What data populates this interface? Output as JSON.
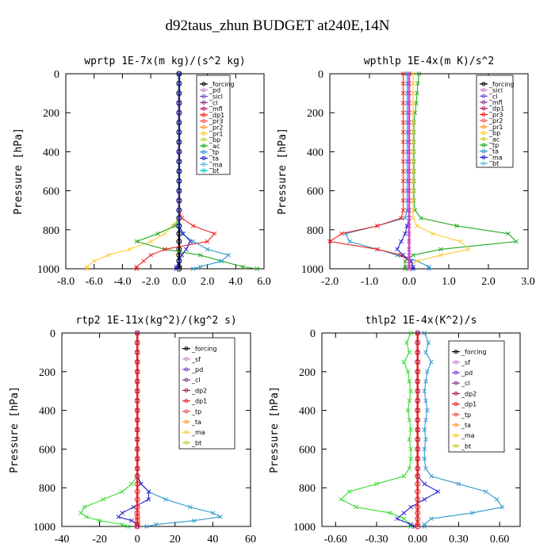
{
  "figure_title": "d92taus_zhun  BUDGET at240E,14N",
  "chart_data": [
    {
      "type": "line",
      "title": "wprtp  1E-7x(m kg)/(s^2 kg)",
      "ylabel": "Pressure [hPa]",
      "xlim": [
        -8.0,
        6.0
      ],
      "ylim": [
        1000,
        0
      ],
      "xticks": [
        "-8.0",
        "-6.0",
        "-4.0",
        "-2.0",
        "0.0",
        "2.0",
        "4.0",
        "6.0"
      ],
      "yticks": [
        "0",
        "200",
        "400",
        "600",
        "800",
        "1000"
      ],
      "y": [
        0,
        50,
        100,
        150,
        200,
        250,
        300,
        350,
        400,
        450,
        500,
        550,
        600,
        650,
        700,
        740,
        780,
        820,
        860,
        900,
        930,
        960,
        990,
        1000
      ],
      "legend": [
        "_forcing",
        "_pd",
        "_sicl",
        "_cl",
        "_mfl",
        "_dp1",
        "_pr3",
        "_pr2",
        "_pr1",
        "_bp",
        "_ac",
        "_tp",
        "_ta",
        "_ma",
        "_bt"
      ],
      "series": [
        {
          "name": "_forcing",
          "color": "#000000",
          "marker": "circle",
          "values": [
            0,
            0,
            0,
            0,
            0,
            0,
            0,
            0,
            0,
            0,
            0,
            0,
            0,
            0,
            0,
            0,
            0,
            0,
            0,
            0,
            0,
            0,
            0,
            0
          ]
        },
        {
          "name": "_pr1",
          "color": "#ffcc33",
          "values": [
            0,
            0,
            0,
            0,
            0,
            0,
            0,
            0,
            0,
            0,
            0,
            0,
            0,
            0,
            0,
            0,
            -0.5,
            -1.0,
            -2.0,
            -3.5,
            -5.0,
            -6.0,
            -6.5,
            -6.5
          ]
        },
        {
          "name": "_ac",
          "color": "#22aa22",
          "values": [
            0,
            0,
            0,
            0,
            0,
            0,
            0,
            0,
            0,
            0,
            0,
            0,
            0,
            0,
            0,
            0,
            -0.3,
            -1.5,
            -3.0,
            -1.0,
            1.5,
            3.0,
            4.5,
            5.5
          ]
        },
        {
          "name": "_dp1",
          "color": "#ee2222",
          "values": [
            0,
            0,
            0,
            0,
            0,
            0,
            0,
            0,
            0,
            0,
            0,
            0,
            0,
            0,
            0,
            0.2,
            1.0,
            2.5,
            2.0,
            -1.0,
            -2.0,
            -2.5,
            -3.0,
            -3.0
          ]
        },
        {
          "name": "_tp",
          "color": "#3399cc",
          "values": [
            0,
            0,
            0,
            0,
            0,
            0,
            0,
            0,
            0,
            0,
            0,
            0,
            0,
            0,
            0,
            0,
            0,
            0.2,
            1.0,
            2.0,
            3.5,
            3.0,
            1.5,
            1.0
          ]
        },
        {
          "name": "_ta",
          "color": "#2222cc",
          "values": [
            0,
            0,
            0,
            0,
            0,
            0,
            0,
            0,
            0,
            0,
            0,
            0,
            0,
            0,
            0,
            0,
            0,
            0.3,
            0.8,
            0.5,
            0.2,
            0.0,
            -0.2,
            -0.2
          ]
        }
      ]
    },
    {
      "type": "line",
      "title": "wpthlp  1E-4x(m K)/s^2",
      "ylabel": "Pressure [hPa]",
      "xlim": [
        -2.0,
        3.0
      ],
      "ylim": [
        1000,
        0
      ],
      "xticks": [
        "-2.0",
        "-1.0",
        "0.0",
        "1.0",
        "2.0",
        "3.0"
      ],
      "yticks": [
        "0",
        "200",
        "400",
        "600",
        "800",
        "1000"
      ],
      "y": [
        0,
        50,
        100,
        150,
        200,
        250,
        300,
        350,
        400,
        450,
        500,
        550,
        600,
        650,
        700,
        740,
        780,
        820,
        860,
        900,
        930,
        960,
        990,
        1000
      ],
      "legend": [
        "_forcing",
        "_sicl",
        "_cl",
        "_mfl",
        "_dp1",
        "_pr3",
        "_pr2",
        "_pr1",
        "_bp",
        "_ac",
        "_tp",
        "_ta",
        "_ma",
        "_bt"
      ],
      "series": [
        {
          "name": "_ac",
          "color": "#22aa22",
          "values": [
            0.25,
            0.22,
            0.2,
            0.18,
            0.15,
            0.12,
            0.12,
            0.12,
            0.12,
            0.12,
            0.12,
            0.12,
            0.12,
            0.12,
            0.15,
            0.3,
            1.2,
            2.5,
            2.7,
            0.8,
            0.1,
            -0.1,
            -0.1,
            -0.1
          ]
        },
        {
          "name": "_tp",
          "color": "#3399cc",
          "values": [
            -0.05,
            -0.05,
            -0.05,
            -0.05,
            -0.05,
            -0.05,
            -0.05,
            -0.05,
            -0.05,
            -0.05,
            -0.05,
            -0.05,
            -0.05,
            -0.05,
            -0.05,
            -0.1,
            -0.8,
            -1.6,
            -1.5,
            -0.8,
            -0.3,
            0.2,
            0.5,
            0.5
          ]
        },
        {
          "name": "_dp1",
          "color": "#ee2222",
          "values": [
            -0.15,
            -0.15,
            -0.15,
            -0.15,
            -0.15,
            -0.15,
            -0.15,
            -0.15,
            -0.15,
            -0.15,
            -0.15,
            -0.15,
            -0.15,
            -0.15,
            -0.15,
            -0.2,
            -0.8,
            -1.7,
            -2.0,
            -0.8,
            -0.2,
            0.0,
            0.0,
            0.0
          ]
        },
        {
          "name": "_pr1",
          "color": "#ffcc33",
          "values": [
            0.1,
            0.1,
            0.1,
            0.1,
            0.1,
            0.1,
            0.1,
            0.1,
            0.1,
            0.1,
            0.1,
            0.1,
            0.1,
            0.1,
            0.1,
            0.1,
            0.2,
            0.6,
            1.3,
            1.5,
            0.8,
            0.2,
            0.0,
            0.0
          ]
        },
        {
          "name": "_ta",
          "color": "#2222cc",
          "values": [
            0,
            0,
            0,
            0,
            0,
            0,
            0,
            0,
            0,
            0,
            0,
            0,
            0,
            0,
            0,
            0,
            -0.05,
            -0.1,
            -0.2,
            -0.3,
            -0.15,
            0.05,
            0.1,
            0.1
          ]
        },
        {
          "name": "_forcing",
          "color": "#cc44cc",
          "values": [
            0,
            0,
            0,
            0,
            0,
            0,
            0,
            0,
            0,
            0,
            0,
            0,
            0,
            0,
            0,
            0,
            0,
            0,
            0,
            0,
            0,
            0,
            0,
            0
          ]
        }
      ]
    },
    {
      "type": "line",
      "title": "rtp2  1E-11x(kg^2)/(kg^2 s)",
      "ylabel": "Pressure [hPa]",
      "xlim": [
        -40,
        60
      ],
      "ylim": [
        1000,
        0
      ],
      "xticks": [
        "-40",
        "-20",
        "0",
        "20",
        "40",
        "60"
      ],
      "yticks": [
        "0",
        "200",
        "400",
        "600",
        "800",
        "1000"
      ],
      "y": [
        0,
        50,
        100,
        150,
        200,
        250,
        300,
        350,
        400,
        450,
        500,
        550,
        600,
        650,
        700,
        740,
        780,
        820,
        860,
        900,
        930,
        950,
        970,
        990,
        1000
      ],
      "legend": [
        "_forcing",
        "_sf",
        "_pd",
        "_cl",
        "_dp2",
        "_dp1",
        "_tp",
        "_ta",
        "_ma",
        "_bt"
      ],
      "series": [
        {
          "name": "_dp1",
          "color": "#33dd33",
          "values": [
            0,
            0,
            0,
            0,
            0,
            0,
            0,
            0,
            0,
            0,
            0,
            0,
            0,
            0,
            0,
            0,
            -3,
            -8,
            -18,
            -28,
            -30,
            -27,
            -20,
            -8,
            -5
          ]
        },
        {
          "name": "_tp",
          "color": "#3399cc",
          "values": [
            0,
            0,
            0,
            0,
            0,
            0,
            0,
            0,
            0,
            0,
            0,
            0,
            0,
            0,
            0,
            0,
            2,
            6,
            15,
            28,
            40,
            44,
            30,
            10,
            5
          ]
        },
        {
          "name": "_ta",
          "color": "#2222cc",
          "values": [
            0,
            0,
            0,
            0,
            0,
            0,
            0,
            0,
            0,
            0,
            0,
            0,
            0,
            0,
            0,
            0,
            2,
            6,
            6,
            -2,
            -8,
            -10,
            -3,
            0,
            0
          ]
        },
        {
          "name": "_forcing",
          "color": "#ee2222",
          "marker": "circle",
          "values": [
            0,
            0,
            0,
            0,
            0,
            0,
            0,
            0,
            0,
            0,
            0,
            0,
            0,
            0,
            0,
            0,
            0,
            0,
            0,
            0,
            0,
            0,
            0,
            0,
            0
          ]
        }
      ]
    },
    {
      "type": "line",
      "title": "thlp2  1E-4x(K^2)/s",
      "ylabel": "Pressure [hPa]",
      "xlim": [
        -0.7,
        0.75
      ],
      "ylim": [
        1000,
        0
      ],
      "xticks": [
        "-0.60",
        "-0.30",
        "0.00",
        "0.30",
        "0.60"
      ],
      "yticks": [
        "0",
        "200",
        "400",
        "600",
        "800",
        "1000"
      ],
      "y": [
        0,
        50,
        100,
        150,
        200,
        250,
        300,
        350,
        400,
        450,
        500,
        550,
        600,
        650,
        700,
        740,
        780,
        820,
        860,
        900,
        930,
        960,
        990,
        1000
      ],
      "legend": [
        "_forcing",
        "_sf",
        "_pd",
        "_cl",
        "_dp2",
        "_dp1",
        "_tp",
        "_ta",
        "_ma",
        "_bt"
      ],
      "series": [
        {
          "name": "_dp1",
          "color": "#33dd33",
          "values": [
            -0.05,
            -0.08,
            -0.06,
            -0.1,
            -0.07,
            -0.06,
            -0.05,
            -0.06,
            -0.07,
            -0.06,
            -0.05,
            -0.06,
            -0.05,
            -0.05,
            -0.06,
            -0.1,
            -0.3,
            -0.5,
            -0.56,
            -0.45,
            -0.2,
            -0.1,
            -0.05,
            -0.05
          ]
        },
        {
          "name": "_tp",
          "color": "#3399cc",
          "values": [
            0.05,
            0.08,
            0.06,
            0.1,
            0.07,
            0.06,
            0.05,
            0.06,
            0.07,
            0.06,
            0.05,
            0.06,
            0.05,
            0.05,
            0.06,
            0.1,
            0.3,
            0.5,
            0.58,
            0.62,
            0.4,
            0.1,
            0.05,
            0.05
          ]
        },
        {
          "name": "_ta",
          "color": "#2222cc",
          "values": [
            0,
            0,
            0,
            0,
            0,
            0,
            0,
            0,
            0,
            0,
            0,
            0,
            0,
            0,
            0,
            0,
            0.05,
            0.15,
            0.05,
            -0.05,
            -0.1,
            -0.15,
            -0.05,
            -0.02
          ]
        },
        {
          "name": "_forcing",
          "color": "#ee2222",
          "marker": "circle",
          "values": [
            0,
            0,
            0,
            0,
            0,
            0,
            0,
            0,
            0,
            0,
            0,
            0,
            0,
            0,
            0,
            0,
            0,
            0,
            0,
            0,
            0,
            0,
            0,
            0
          ]
        }
      ]
    }
  ]
}
